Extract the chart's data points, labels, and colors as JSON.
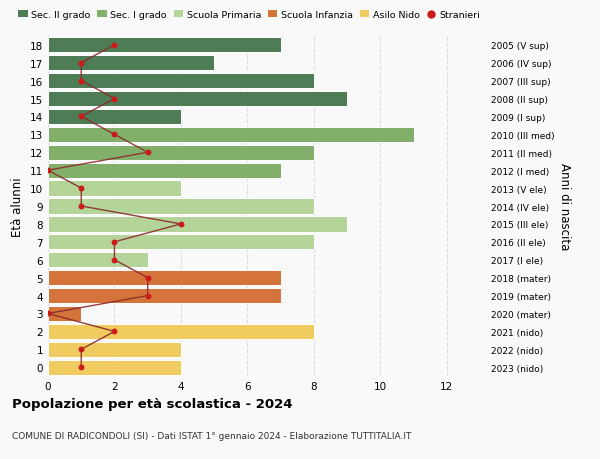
{
  "ages": [
    18,
    17,
    16,
    15,
    14,
    13,
    12,
    11,
    10,
    9,
    8,
    7,
    6,
    5,
    4,
    3,
    2,
    1,
    0
  ],
  "right_labels": [
    "2005 (V sup)",
    "2006 (IV sup)",
    "2007 (III sup)",
    "2008 (II sup)",
    "2009 (I sup)",
    "2010 (III med)",
    "2011 (II med)",
    "2012 (I med)",
    "2013 (V ele)",
    "2014 (IV ele)",
    "2015 (III ele)",
    "2016 (II ele)",
    "2017 (I ele)",
    "2018 (mater)",
    "2019 (mater)",
    "2020 (mater)",
    "2021 (nido)",
    "2022 (nido)",
    "2023 (nido)"
  ],
  "bar_values": [
    7,
    5,
    8,
    9,
    4,
    11,
    8,
    7,
    4,
    8,
    9,
    8,
    3,
    7,
    7,
    1,
    8,
    4,
    4
  ],
  "bar_colors": [
    "#4d7c55",
    "#4d7c55",
    "#4d7c55",
    "#4d7c55",
    "#4d7c55",
    "#82b06a",
    "#82b06a",
    "#82b06a",
    "#b5d499",
    "#b5d499",
    "#b5d499",
    "#b5d499",
    "#b5d499",
    "#d4743a",
    "#d4743a",
    "#d4743a",
    "#f0cc60",
    "#f0cc60",
    "#f0cc60"
  ],
  "stranieri_values": [
    2,
    1,
    1,
    2,
    1,
    2,
    3,
    0,
    1,
    1,
    4,
    2,
    2,
    3,
    3,
    0,
    2,
    1,
    1
  ],
  "legend_labels": [
    "Sec. II grado",
    "Sec. I grado",
    "Scuola Primaria",
    "Scuola Infanzia",
    "Asilo Nido",
    "Stranieri"
  ],
  "legend_colors": [
    "#4d7c55",
    "#82b06a",
    "#b5d499",
    "#d4743a",
    "#f0cc60",
    "#cc1a1a"
  ],
  "ylabel_left": "Età alunni",
  "ylabel_right": "Anni di nascita",
  "title": "Popolazione per età scolastica - 2024",
  "subtitle": "COMUNE DI RADICONDOLI (SI) - Dati ISTAT 1° gennaio 2024 - Elaborazione TUTTITALIA.IT",
  "xlim": [
    0,
    13
  ],
  "xticks": [
    0,
    2,
    4,
    6,
    8,
    10,
    12
  ],
  "background_color": "#f9f9f9",
  "bar_edge_color": "white",
  "grid_color": "#dddddd",
  "stranieri_line_color": "#8b2a2a",
  "stranieri_dot_color": "#cc1a1a"
}
